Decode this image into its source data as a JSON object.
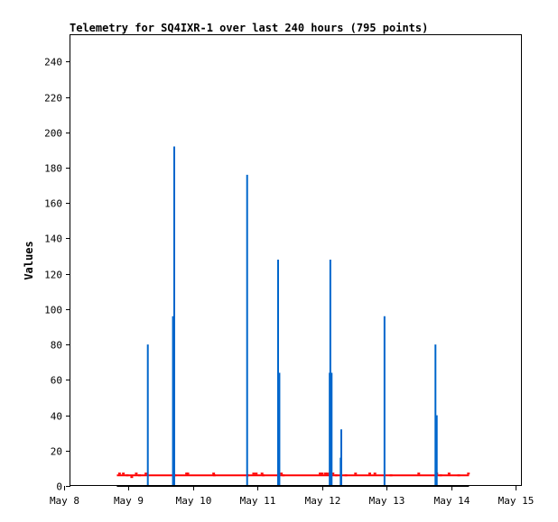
{
  "chart_data": {
    "type": "bar",
    "title": "Telemetry for SQ4IXR-1 over last 240 hours (795 points)",
    "ylabel": "Values",
    "xlabel": "",
    "ylim": [
      0,
      255
    ],
    "xlim": [
      0,
      7
    ],
    "y_ticks": [
      0,
      20,
      40,
      60,
      80,
      100,
      120,
      140,
      160,
      180,
      200,
      220,
      240
    ],
    "x_ticks": [
      {
        "x": 0,
        "label": "May 8"
      },
      {
        "x": 1,
        "label": "May 9"
      },
      {
        "x": 2,
        "label": "May 10"
      },
      {
        "x": 3,
        "label": "May 11"
      },
      {
        "x": 4,
        "label": "May 12"
      },
      {
        "x": 5,
        "label": "May 13"
      },
      {
        "x": 6,
        "label": "May 14"
      },
      {
        "x": 7,
        "label": "May 15"
      }
    ],
    "grid": false,
    "series": [
      {
        "color": "#0066cc",
        "style": "impulses",
        "points": [
          {
            "x": 1.2,
            "y": 80
          },
          {
            "x": 1.59,
            "y": 96
          },
          {
            "x": 1.61,
            "y": 192
          },
          {
            "x": 2.74,
            "y": 176
          },
          {
            "x": 3.22,
            "y": 128
          },
          {
            "x": 3.24,
            "y": 64
          },
          {
            "x": 4.02,
            "y": 64
          },
          {
            "x": 4.03,
            "y": 128
          },
          {
            "x": 4.05,
            "y": 64
          },
          {
            "x": 4.19,
            "y": 16
          },
          {
            "x": 4.2,
            "y": 32
          },
          {
            "x": 4.87,
            "y": 96
          },
          {
            "x": 5.66,
            "y": 80
          },
          {
            "x": 5.68,
            "y": 40
          }
        ]
      },
      {
        "color": "#ff0000",
        "style": "line",
        "x_start": 0.72,
        "x_end": 6.18,
        "level": 6,
        "markers": [
          {
            "x": 0.74,
            "y": 7
          },
          {
            "x": 0.8,
            "y": 7
          },
          {
            "x": 0.86,
            "y": 6
          },
          {
            "x": 0.93,
            "y": 5
          },
          {
            "x": 1.0,
            "y": 7
          },
          {
            "x": 1.05,
            "y": 6
          },
          {
            "x": 1.15,
            "y": 7
          },
          {
            "x": 1.6,
            "y": 6
          },
          {
            "x": 1.78,
            "y": 7
          },
          {
            "x": 1.8,
            "y": 7
          },
          {
            "x": 2.2,
            "y": 7
          },
          {
            "x": 2.21,
            "y": 6
          },
          {
            "x": 2.73,
            "y": 6
          },
          {
            "x": 2.82,
            "y": 7
          },
          {
            "x": 2.86,
            "y": 7
          },
          {
            "x": 2.95,
            "y": 7
          },
          {
            "x": 2.97,
            "y": 6
          },
          {
            "x": 3.25,
            "y": 7
          },
          {
            "x": 3.28,
            "y": 6
          },
          {
            "x": 3.85,
            "y": 7
          },
          {
            "x": 3.88,
            "y": 7
          },
          {
            "x": 3.93,
            "y": 7
          },
          {
            "x": 3.96,
            "y": 7
          },
          {
            "x": 4.0,
            "y": 7
          },
          {
            "x": 4.05,
            "y": 7
          },
          {
            "x": 4.1,
            "y": 6
          },
          {
            "x": 4.25,
            "y": 6
          },
          {
            "x": 4.4,
            "y": 7
          },
          {
            "x": 4.62,
            "y": 7
          },
          {
            "x": 4.7,
            "y": 7
          },
          {
            "x": 4.95,
            "y": 6
          },
          {
            "x": 5.38,
            "y": 7
          },
          {
            "x": 5.66,
            "y": 7
          },
          {
            "x": 5.72,
            "y": 6
          },
          {
            "x": 5.85,
            "y": 7
          },
          {
            "x": 6.0,
            "y": 6
          },
          {
            "x": 6.15,
            "y": 7
          }
        ]
      },
      {
        "color": "#000000",
        "style": "line",
        "x_start": 0.72,
        "x_end": 6.18,
        "level": 0
      }
    ]
  }
}
